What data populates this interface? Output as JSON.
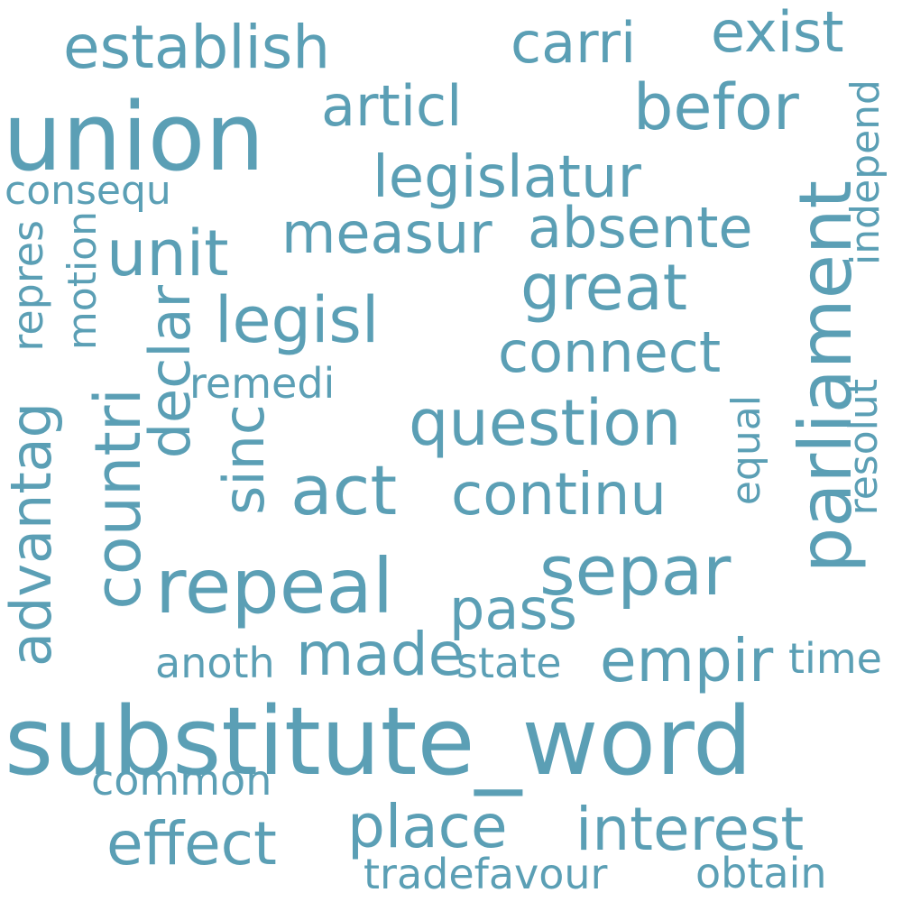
{
  "theme": {
    "word_color": "#5b9fb5",
    "background": "#ffffff"
  },
  "words": [
    {
      "text": "substitute_word"
    },
    {
      "text": "union"
    },
    {
      "text": "parliament"
    },
    {
      "text": "repeal"
    },
    {
      "text": "act"
    },
    {
      "text": "countri"
    },
    {
      "text": "separ"
    },
    {
      "text": "question"
    },
    {
      "text": "establish"
    },
    {
      "text": "legisl"
    },
    {
      "text": "unit"
    },
    {
      "text": "legislatur"
    },
    {
      "text": "great"
    },
    {
      "text": "befor"
    },
    {
      "text": "place"
    },
    {
      "text": "interest"
    },
    {
      "text": "effect"
    },
    {
      "text": "empir"
    },
    {
      "text": "made"
    },
    {
      "text": "continu"
    },
    {
      "text": "connect"
    },
    {
      "text": "absente"
    },
    {
      "text": "measur"
    },
    {
      "text": "articl"
    },
    {
      "text": "carri"
    },
    {
      "text": "exist"
    },
    {
      "text": "advantag"
    },
    {
      "text": "declar"
    },
    {
      "text": "sinc"
    },
    {
      "text": "pass"
    },
    {
      "text": "common"
    },
    {
      "text": "tradefavour"
    },
    {
      "text": "obtain"
    },
    {
      "text": "state"
    },
    {
      "text": "anoth"
    },
    {
      "text": "time"
    },
    {
      "text": "remedi"
    },
    {
      "text": "consequ"
    },
    {
      "text": "repres"
    },
    {
      "text": "motion"
    },
    {
      "text": "equal"
    },
    {
      "text": "resolut"
    },
    {
      "text": "independ"
    }
  ]
}
